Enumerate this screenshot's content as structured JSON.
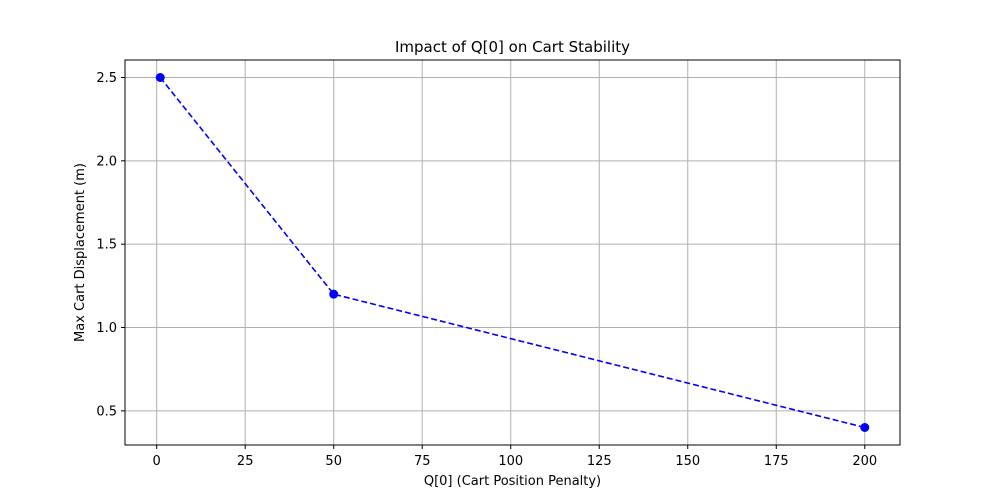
{
  "chart_data": {
    "type": "line",
    "title": "Impact of Q[0] on Cart Stability",
    "xlabel": "Q[0] (Cart Position Penalty)",
    "ylabel": "Max Cart Displacement (m)",
    "xlim": [
      -8.95,
      209.95
    ],
    "ylim": [
      0.295,
      2.605
    ],
    "xticks": [
      0,
      25,
      50,
      75,
      100,
      125,
      150,
      175,
      200
    ],
    "yticks": [
      0.5,
      1.0,
      1.5,
      2.0,
      2.5
    ],
    "xtick_labels": [
      "0",
      "25",
      "50",
      "75",
      "100",
      "125",
      "150",
      "175",
      "200"
    ],
    "ytick_labels": [
      "0.5",
      "1.0",
      "1.5",
      "2.0",
      "2.5"
    ],
    "grid": true,
    "series": [
      {
        "x": [
          1,
          50,
          200
        ],
        "values": [
          2.5,
          1.2,
          0.4
        ],
        "color": "#0000ff",
        "linestyle": "dashed",
        "marker": "circle"
      }
    ]
  }
}
